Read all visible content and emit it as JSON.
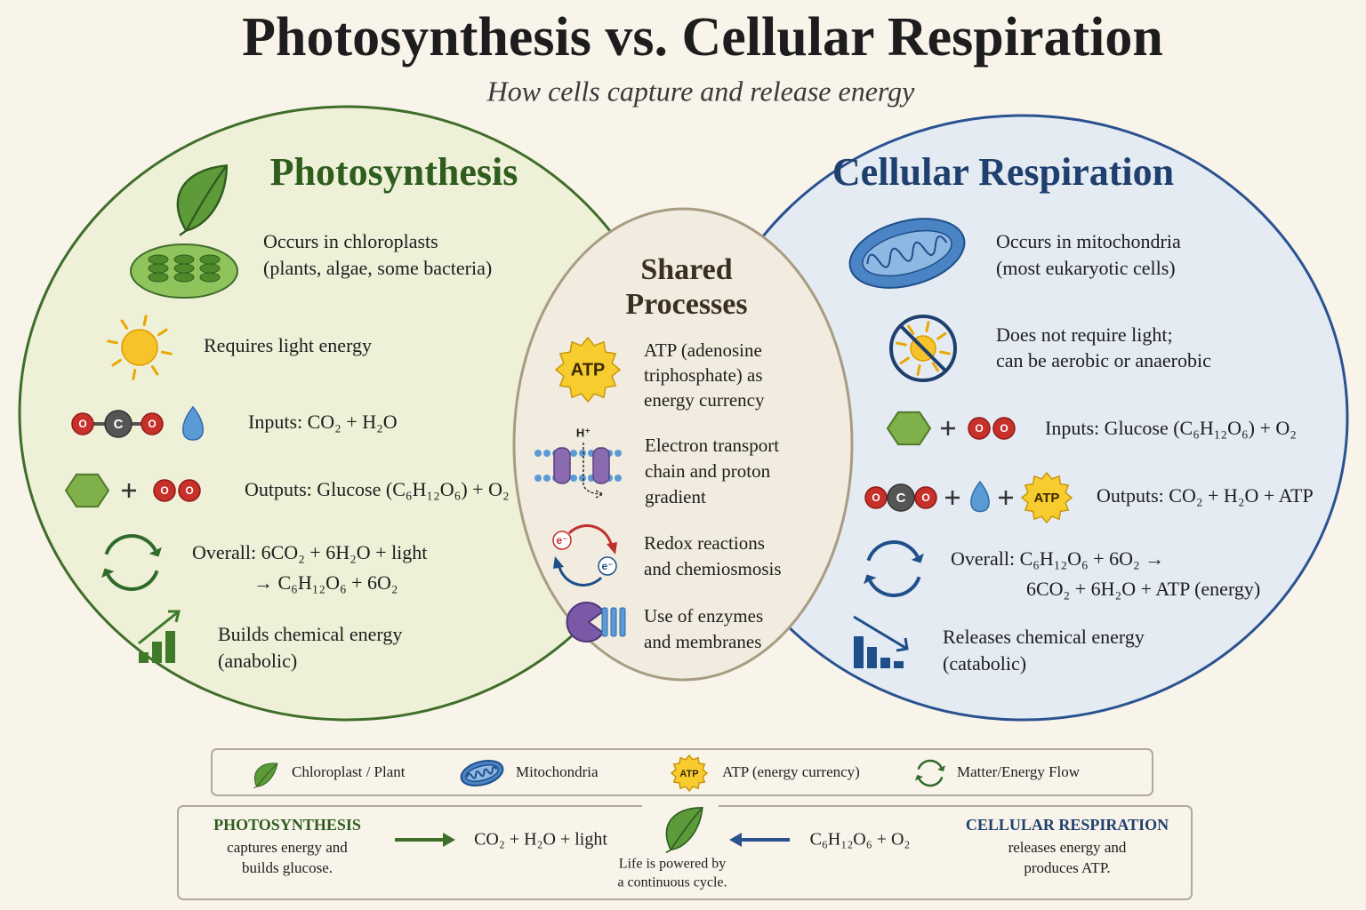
{
  "header": {
    "title": "Photosynthesis vs. Cellular Respiration",
    "subtitle": "How cells capture and release energy"
  },
  "photosynthesis": {
    "title": "Photosynthesis",
    "items": [
      {
        "lines": [
          "Occurs in chloroplasts",
          "(plants, algae, some bacteria)"
        ]
      },
      {
        "lines": [
          "Requires light energy"
        ]
      },
      {
        "lines": [
          "Inputs: CO₂ + H₂O"
        ]
      },
      {
        "lines": [
          "Outputs: Glucose (C₆H₁₂O₆) + O₂"
        ]
      },
      {
        "lines": [
          "Overall: 6CO₂ + 6H₂O + light",
          "→ C₆H₁₂O₆ + 6O₂"
        ]
      },
      {
        "lines": [
          "Builds chemical energy",
          "(anabolic)"
        ]
      }
    ]
  },
  "shared": {
    "title": [
      "Shared",
      "Processes"
    ],
    "items": [
      {
        "lines": [
          "ATP (adenosine",
          "triphosphate) as",
          "energy currency"
        ]
      },
      {
        "lines": [
          "Electron transport",
          "chain and proton",
          "gradient"
        ]
      },
      {
        "lines": [
          "Redox reactions",
          "and chemiosmosis"
        ]
      },
      {
        "lines": [
          "Use of enzymes",
          "and membranes"
        ]
      }
    ]
  },
  "respiration": {
    "title": "Cellular Respiration",
    "items": [
      {
        "lines": [
          "Occurs in mitochondria",
          "(most eukaryotic cells)"
        ]
      },
      {
        "lines": [
          "Does not require light;",
          "can be aerobic or anaerobic"
        ]
      },
      {
        "lines": [
          "Inputs: Glucose (C₆H₁₂O₆) + O₂"
        ]
      },
      {
        "lines": [
          "Outputs: CO₂ + H₂O + ATP"
        ]
      },
      {
        "lines": [
          "Overall: C₆H₁₂O₆ + 6O₂ →",
          "6CO₂ + 6H₂O + ATP (energy)"
        ]
      },
      {
        "lines": [
          "Releases chemical energy",
          "(catabolic)"
        ]
      }
    ]
  },
  "icon_labels": {
    "carbon": "C",
    "oxygen": "O",
    "atp": "ATP",
    "proton": "H⁺",
    "electron": "e⁻"
  },
  "legend": {
    "items": [
      "Chloroplast / Plant",
      "Mitochondria",
      "ATP (energy currency)",
      "Matter/Energy Flow"
    ]
  },
  "footer": {
    "left": {
      "title": "PHOTOSYNTHESIS",
      "lines": [
        "captures energy and",
        "builds glucose."
      ]
    },
    "left_equation": "CO₂ + H₂O + light",
    "center": [
      "Life is powered by",
      "a continuous cycle."
    ],
    "right_equation": "C₆H₁₂O₆ + O₂",
    "right": {
      "title": "CELLULAR RESPIRATION",
      "lines": [
        "releases energy and",
        "produces ATP."
      ]
    }
  }
}
